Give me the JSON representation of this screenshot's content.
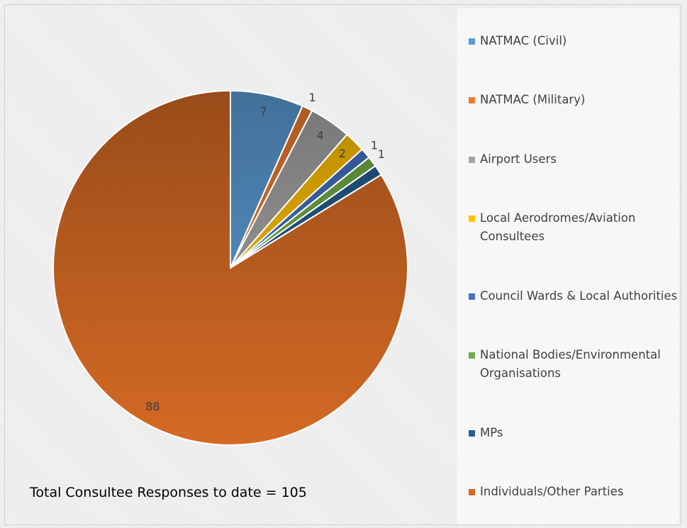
{
  "chart_data": {
    "type": "pie",
    "categories": [
      "NATMAC (Civil)",
      "NATMAC (Military)",
      "Airport Users",
      "Local Aerodromes/Aviation Consultees",
      "Council Wards & Local Authorities",
      "National Bodies/Environmental Organisations",
      "MPs",
      "Individuals/Other Parties"
    ],
    "values": [
      7,
      1,
      4,
      2,
      1,
      1,
      1,
      88
    ],
    "value_labels": [
      "7",
      "1",
      "4",
      "2",
      "1",
      "1",
      null,
      "88"
    ],
    "colors": [
      "#5b9bd5",
      "#ed7d31",
      "#a5a5a5",
      "#ffc000",
      "#4472c4",
      "#70ad47",
      "#255e91",
      "#d46a24"
    ],
    "annotation": "Total Consultee Responses to date = 105",
    "legend": "right"
  }
}
